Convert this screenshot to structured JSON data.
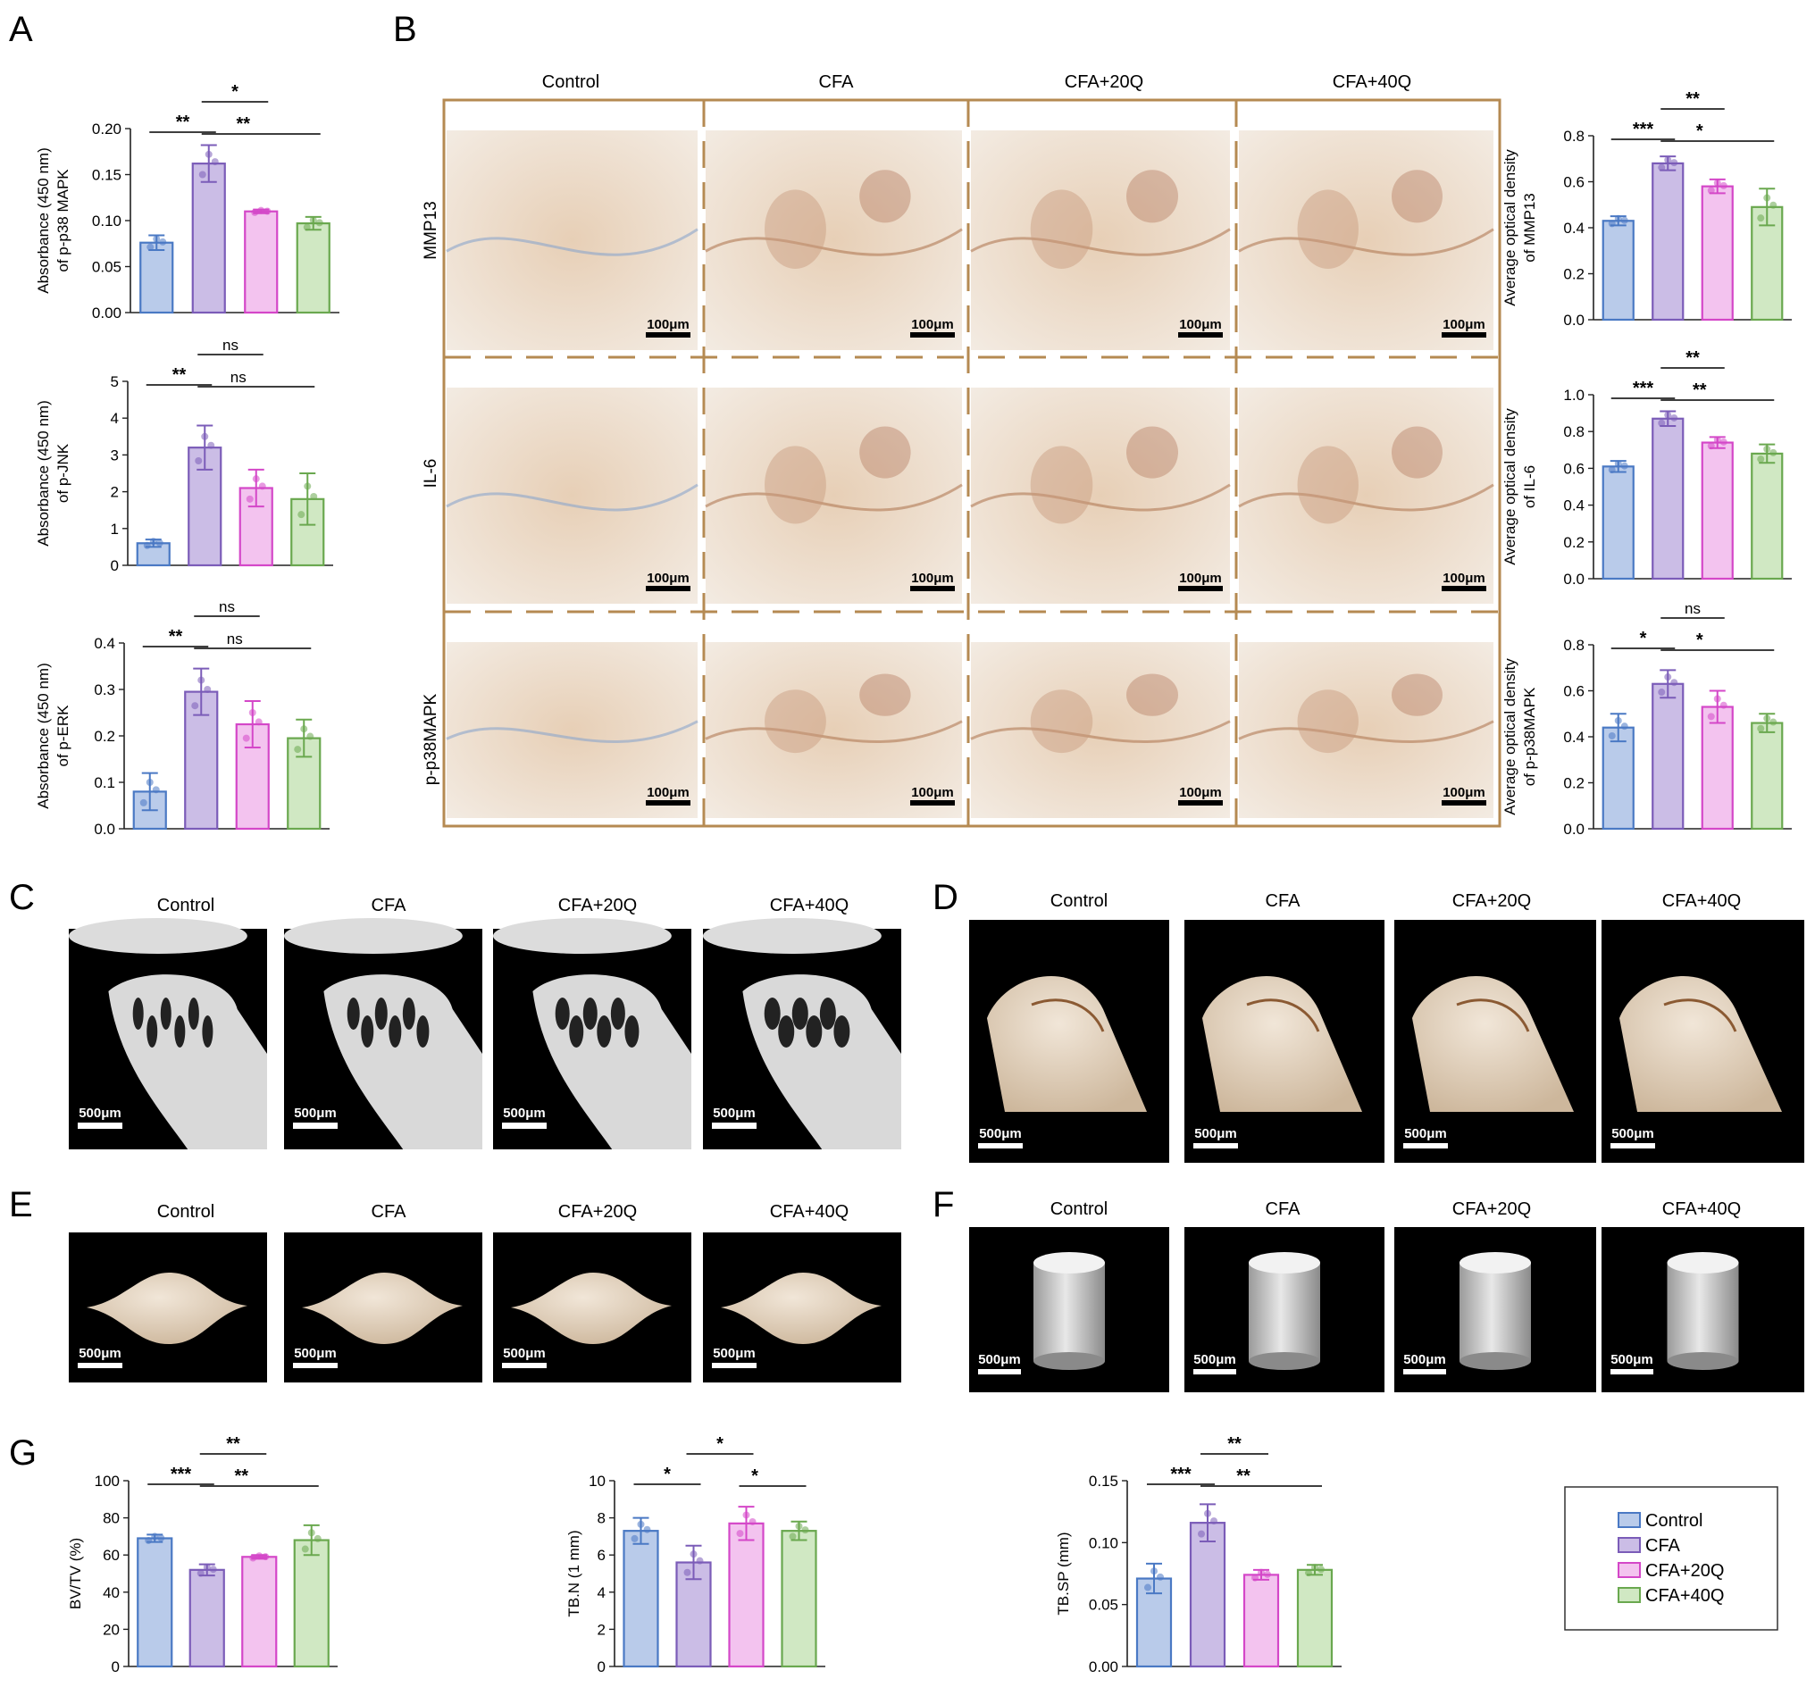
{
  "colors": {
    "control": "#4a79c4",
    "control_fill": "#b9cbea",
    "cfa": "#7b5cb8",
    "cfa_fill": "#cbbde6",
    "q20": "#d447c8",
    "q20_fill": "#f3c3ef",
    "q40": "#6aa84f",
    "q40_fill": "#d0e8c3",
    "frame": "#b58a52"
  },
  "panel_letters": {
    "a": "A",
    "b": "B",
    "c": "C",
    "d": "D",
    "e": "E",
    "f": "F",
    "g": "G"
  },
  "groups": [
    "Control",
    "CFA",
    "CFA+20Q",
    "CFA+40Q"
  ],
  "panel_b": {
    "columns": [
      "Control",
      "CFA",
      "CFA+20Q",
      "CFA+40Q"
    ],
    "rows": [
      "MMP13",
      "IL-6",
      "p-p38MAPK"
    ],
    "scale_label": "100μm"
  },
  "panel_c": {
    "columns": [
      "Control",
      "CFA",
      "CFA+20Q",
      "CFA+40Q"
    ],
    "scale_label": "500μm"
  },
  "panel_d": {
    "columns": [
      "Control",
      "CFA",
      "CFA+20Q",
      "CFA+40Q"
    ],
    "scale_label": "500μm"
  },
  "panel_e": {
    "columns": [
      "Control",
      "CFA",
      "CFA+20Q",
      "CFA+40Q"
    ],
    "scale_label": "500μm"
  },
  "panel_f": {
    "columns": [
      "Control",
      "CFA",
      "CFA+20Q",
      "CFA+40Q"
    ],
    "scale_label": "500μm"
  },
  "legend": {
    "items": [
      "Control",
      "CFA",
      "CFA+20Q",
      "CFA+40Q"
    ]
  },
  "chart_data": [
    {
      "id": "A1",
      "type": "bar",
      "categories": [
        "Control",
        "CFA",
        "CFA+20Q",
        "CFA+40Q"
      ],
      "values": [
        0.076,
        0.162,
        0.11,
        0.097
      ],
      "errors": [
        0.008,
        0.02,
        0.002,
        0.007
      ],
      "ylabel": [
        "Absorbance (450 nm)",
        "of p-p38 MAPK"
      ],
      "ylim": [
        0,
        0.2
      ],
      "yticks": [
        "0.00",
        "0.05",
        "0.10",
        "0.15",
        "0.20"
      ],
      "sig": [
        {
          "a": 0,
          "b": 1,
          "label": "**"
        },
        {
          "a": 1,
          "b": 2,
          "label": "*"
        },
        {
          "a": 1,
          "b": 3,
          "label": "**"
        }
      ]
    },
    {
      "id": "A2",
      "type": "bar",
      "categories": [
        "Control",
        "CFA",
        "CFA+20Q",
        "CFA+40Q"
      ],
      "values": [
        0.6,
        3.2,
        2.1,
        1.8
      ],
      "errors": [
        0.1,
        0.6,
        0.5,
        0.7
      ],
      "ylabel": [
        "Absorbance (450 nm)",
        "of p-JNK"
      ],
      "ylim": [
        0,
        5
      ],
      "yticks": [
        "0",
        "1",
        "2",
        "3",
        "4",
        "5"
      ],
      "sig": [
        {
          "a": 0,
          "b": 1,
          "label": "**"
        },
        {
          "a": 1,
          "b": 2,
          "label": "ns"
        },
        {
          "a": 1,
          "b": 3,
          "label": "ns"
        }
      ]
    },
    {
      "id": "A3",
      "type": "bar",
      "categories": [
        "Control",
        "CFA",
        "CFA+20Q",
        "CFA+40Q"
      ],
      "values": [
        0.08,
        0.295,
        0.225,
        0.195
      ],
      "errors": [
        0.04,
        0.05,
        0.05,
        0.04
      ],
      "ylabel": [
        "Absorbance (450 nm)",
        "of p-ERK"
      ],
      "ylim": [
        0,
        0.4
      ],
      "yticks": [
        "0.0",
        "0.1",
        "0.2",
        "0.3",
        "0.4"
      ],
      "sig": [
        {
          "a": 0,
          "b": 1,
          "label": "**"
        },
        {
          "a": 1,
          "b": 2,
          "label": "ns"
        },
        {
          "a": 1,
          "b": 3,
          "label": "ns"
        }
      ]
    },
    {
      "id": "B1",
      "type": "bar",
      "categories": [
        "Control",
        "CFA",
        "CFA+20Q",
        "CFA+40Q"
      ],
      "values": [
        0.43,
        0.68,
        0.58,
        0.49
      ],
      "errors": [
        0.02,
        0.03,
        0.03,
        0.08
      ],
      "ylabel": [
        "Average optical density",
        "of MMP13"
      ],
      "ylim": [
        0,
        0.8
      ],
      "yticks": [
        "0.0",
        "0.2",
        "0.4",
        "0.6",
        "0.8"
      ],
      "sig": [
        {
          "a": 0,
          "b": 1,
          "label": "***"
        },
        {
          "a": 1,
          "b": 2,
          "label": "**"
        },
        {
          "a": 1,
          "b": 3,
          "label": "*"
        }
      ]
    },
    {
      "id": "B2",
      "type": "bar",
      "categories": [
        "Control",
        "CFA",
        "CFA+20Q",
        "CFA+40Q"
      ],
      "values": [
        0.61,
        0.87,
        0.74,
        0.68
      ],
      "errors": [
        0.03,
        0.04,
        0.03,
        0.05
      ],
      "ylabel": [
        "Average optical density",
        "of IL-6"
      ],
      "ylim": [
        0,
        1.0
      ],
      "yticks": [
        "0.0",
        "0.2",
        "0.4",
        "0.6",
        "0.8",
        "1.0"
      ],
      "sig": [
        {
          "a": 0,
          "b": 1,
          "label": "***"
        },
        {
          "a": 1,
          "b": 2,
          "label": "**"
        },
        {
          "a": 1,
          "b": 3,
          "label": "**"
        }
      ]
    },
    {
      "id": "B3",
      "type": "bar",
      "categories": [
        "Control",
        "CFA",
        "CFA+20Q",
        "CFA+40Q"
      ],
      "values": [
        0.44,
        0.63,
        0.53,
        0.46
      ],
      "errors": [
        0.06,
        0.06,
        0.07,
        0.04
      ],
      "ylabel": [
        "Average optical density",
        "of p-p38MAPK"
      ],
      "ylim": [
        0,
        0.8
      ],
      "yticks": [
        "0.0",
        "0.2",
        "0.4",
        "0.6",
        "0.8"
      ],
      "sig": [
        {
          "a": 0,
          "b": 1,
          "label": "*"
        },
        {
          "a": 1,
          "b": 2,
          "label": "ns"
        },
        {
          "a": 1,
          "b": 3,
          "label": "*"
        }
      ]
    },
    {
      "id": "G1",
      "type": "bar",
      "categories": [
        "Control",
        "CFA",
        "CFA+20Q",
        "CFA+40Q"
      ],
      "values": [
        69,
        52,
        59,
        68
      ],
      "errors": [
        2,
        3,
        1,
        8
      ],
      "ylabel": [
        "BV/TV (%)"
      ],
      "ylim": [
        0,
        100
      ],
      "yticks": [
        "0",
        "20",
        "40",
        "60",
        "80",
        "100"
      ],
      "sig": [
        {
          "a": 0,
          "b": 1,
          "label": "***"
        },
        {
          "a": 1,
          "b": 2,
          "label": "**"
        },
        {
          "a": 1,
          "b": 3,
          "label": "**"
        }
      ]
    },
    {
      "id": "G2",
      "type": "bar",
      "categories": [
        "Control",
        "CFA",
        "CFA+20Q",
        "CFA+40Q"
      ],
      "values": [
        7.3,
        5.6,
        7.7,
        7.3
      ],
      "errors": [
        0.7,
        0.9,
        0.9,
        0.5
      ],
      "ylabel": [
        "TB.N (1 mm)"
      ],
      "ylim": [
        0,
        10
      ],
      "yticks": [
        "0",
        "2",
        "4",
        "6",
        "8",
        "10"
      ],
      "sig": [
        {
          "a": 0,
          "b": 1,
          "label": "*"
        },
        {
          "a": 1,
          "b": 2,
          "label": "*"
        },
        {
          "a": 2,
          "b": 3,
          "label": "*"
        }
      ]
    },
    {
      "id": "G3",
      "type": "bar",
      "categories": [
        "Control",
        "CFA",
        "CFA+20Q",
        "CFA+40Q"
      ],
      "values": [
        0.071,
        0.116,
        0.074,
        0.078
      ],
      "errors": [
        0.012,
        0.015,
        0.004,
        0.004
      ],
      "ylabel": [
        "TB.SP (mm)"
      ],
      "ylim": [
        0,
        0.15
      ],
      "yticks": [
        "0.00",
        "0.05",
        "0.10",
        "0.15"
      ],
      "sig": [
        {
          "a": 0,
          "b": 1,
          "label": "***"
        },
        {
          "a": 1,
          "b": 2,
          "label": "**"
        },
        {
          "a": 1,
          "b": 3,
          "label": "**"
        }
      ]
    }
  ]
}
